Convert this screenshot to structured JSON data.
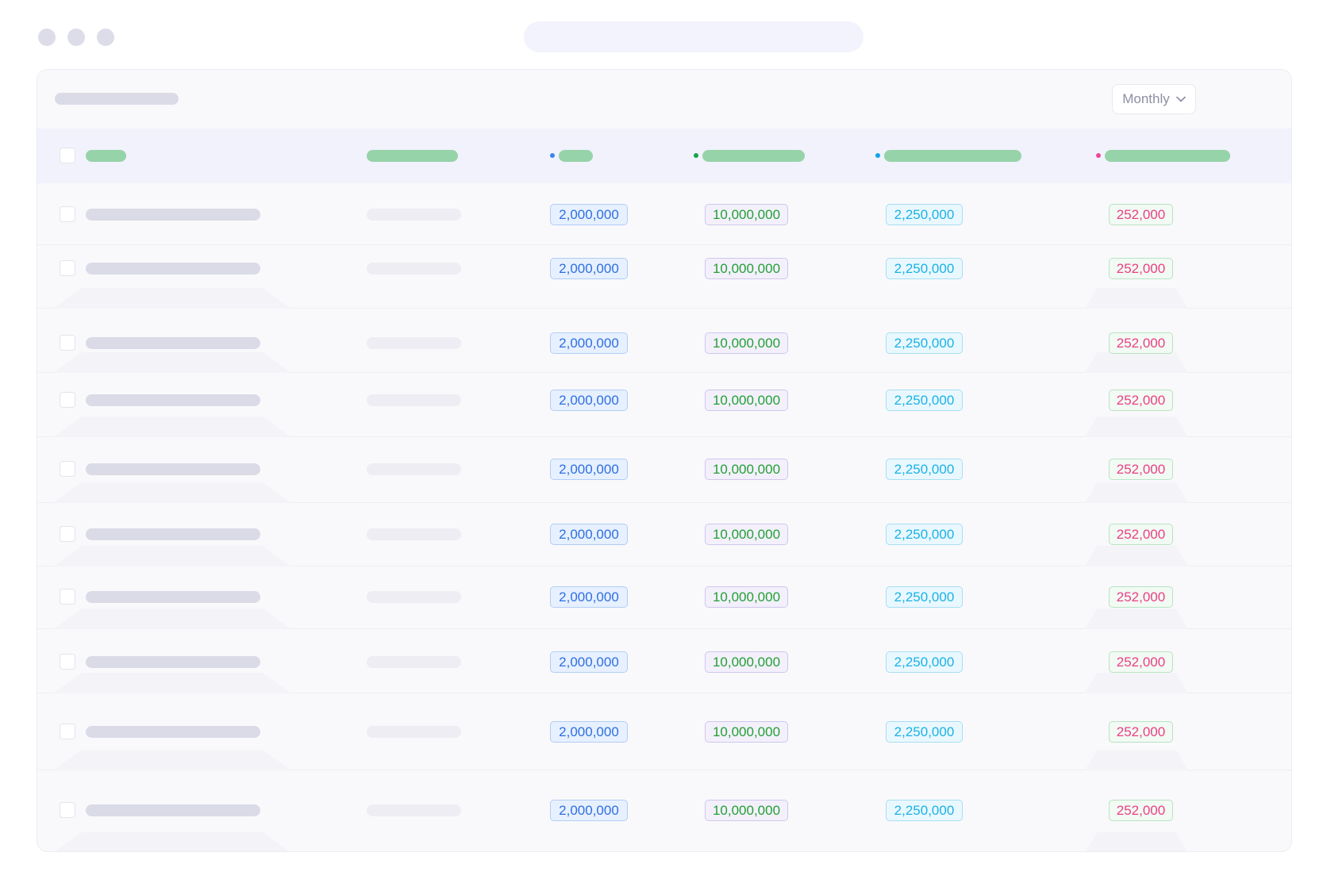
{
  "toolbar": {
    "period_label": "Monthly",
    "chevron_icon": "chevron-down-icon"
  },
  "header": {
    "dot_colors": [
      "#3b82f6",
      "#16a34a",
      "#0ea5e9",
      "#ec4899"
    ]
  },
  "rows": [
    {
      "c1": "2,000,000",
      "c2": "10,000,000",
      "c3": "2,250,000",
      "c4": "252,000"
    },
    {
      "c1": "2,000,000",
      "c2": "10,000,000",
      "c3": "2,250,000",
      "c4": "252,000"
    },
    {
      "c1": "2,000,000",
      "c2": "10,000,000",
      "c3": "2,250,000",
      "c4": "252,000"
    },
    {
      "c1": "2,000,000",
      "c2": "10,000,000",
      "c3": "2,250,000",
      "c4": "252,000"
    },
    {
      "c1": "2,000,000",
      "c2": "10,000,000",
      "c3": "2,250,000",
      "c4": "252,000"
    },
    {
      "c1": "2,000,000",
      "c2": "10,000,000",
      "c3": "2,250,000",
      "c4": "252,000"
    },
    {
      "c1": "2,000,000",
      "c2": "10,000,000",
      "c3": "2,250,000",
      "c4": "252,000"
    },
    {
      "c1": "2,000,000",
      "c2": "10,000,000",
      "c3": "2,250,000",
      "c4": "252,000"
    },
    {
      "c1": "2,000,000",
      "c2": "10,000,000",
      "c3": "2,250,000",
      "c4": "252,000"
    },
    {
      "c1": "2,000,000",
      "c2": "10,000,000",
      "c3": "2,250,000",
      "c4": "252,000"
    }
  ]
}
